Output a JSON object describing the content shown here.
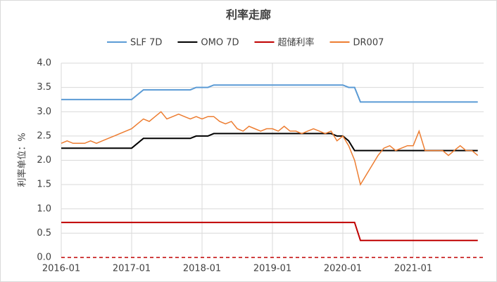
{
  "chart_data": {
    "type": "line",
    "title": "利率走廊",
    "y_label": "利率单位：%",
    "x": [
      "2016-01",
      "2016-02",
      "2016-03",
      "2016-04",
      "2016-05",
      "2016-06",
      "2016-07",
      "2016-08",
      "2016-09",
      "2016-10",
      "2016-11",
      "2016-12",
      "2017-01",
      "2017-02",
      "2017-03",
      "2017-04",
      "2017-05",
      "2017-06",
      "2017-07",
      "2017-08",
      "2017-09",
      "2017-10",
      "2017-11",
      "2017-12",
      "2018-01",
      "2018-02",
      "2018-03",
      "2018-04",
      "2018-05",
      "2018-06",
      "2018-07",
      "2018-08",
      "2018-09",
      "2018-10",
      "2018-11",
      "2018-12",
      "2019-01",
      "2019-02",
      "2019-03",
      "2019-04",
      "2019-05",
      "2019-06",
      "2019-07",
      "2019-08",
      "2019-09",
      "2019-10",
      "2019-11",
      "2019-12",
      "2020-01",
      "2020-02",
      "2020-03",
      "2020-04",
      "2020-05",
      "2020-06",
      "2020-07",
      "2020-08",
      "2020-09",
      "2020-10",
      "2020-11",
      "2020-12",
      "2021-01",
      "2021-02",
      "2021-03",
      "2021-04",
      "2021-05",
      "2021-06",
      "2021-07",
      "2021-08",
      "2021-09",
      "2021-10",
      "2021-11",
      "2021-12"
    ],
    "xlim": [
      "2016-01",
      "2022-01"
    ],
    "xticks": [
      "2016-01",
      "2017-01",
      "2018-01",
      "2019-01",
      "2020-01",
      "2021-01"
    ],
    "ylim": [
      0,
      4
    ],
    "yticks": [
      {
        "value": 0,
        "label": "0.0"
      },
      {
        "value": 0.5,
        "label": "0.5"
      },
      {
        "value": 1,
        "label": "1.0"
      },
      {
        "value": 1.5,
        "label": "1.5"
      },
      {
        "value": 2,
        "label": "2.0"
      },
      {
        "value": 2.5,
        "label": "2.5"
      },
      {
        "value": 3,
        "label": "3.0"
      },
      {
        "value": 3.5,
        "label": "3.5"
      },
      {
        "value": 4,
        "label": "4.0"
      }
    ],
    "grid": true,
    "series": [
      {
        "name": "SLF 7D",
        "color": "#5b9bd5",
        "values": [
          3.25,
          3.25,
          3.25,
          3.25,
          3.25,
          3.25,
          3.25,
          3.25,
          3.25,
          3.25,
          3.25,
          3.25,
          3.25,
          3.35,
          3.45,
          3.45,
          3.45,
          3.45,
          3.45,
          3.45,
          3.45,
          3.45,
          3.45,
          3.5,
          3.5,
          3.5,
          3.55,
          3.55,
          3.55,
          3.55,
          3.55,
          3.55,
          3.55,
          3.55,
          3.55,
          3.55,
          3.55,
          3.55,
          3.55,
          3.55,
          3.55,
          3.55,
          3.55,
          3.55,
          3.55,
          3.55,
          3.55,
          3.55,
          3.55,
          3.5,
          3.5,
          3.2,
          3.2,
          3.2,
          3.2,
          3.2,
          3.2,
          3.2,
          3.2,
          3.2,
          3.2,
          3.2,
          3.2,
          3.2,
          3.2,
          3.2,
          3.2,
          3.2,
          3.2,
          3.2,
          3.2,
          3.2
        ]
      },
      {
        "name": "OMO 7D",
        "color": "#000000",
        "values": [
          2.25,
          2.25,
          2.25,
          2.25,
          2.25,
          2.25,
          2.25,
          2.25,
          2.25,
          2.25,
          2.25,
          2.25,
          2.25,
          2.35,
          2.45,
          2.45,
          2.45,
          2.45,
          2.45,
          2.45,
          2.45,
          2.45,
          2.45,
          2.5,
          2.5,
          2.5,
          2.55,
          2.55,
          2.55,
          2.55,
          2.55,
          2.55,
          2.55,
          2.55,
          2.55,
          2.55,
          2.55,
          2.55,
          2.55,
          2.55,
          2.55,
          2.55,
          2.55,
          2.55,
          2.55,
          2.55,
          2.55,
          2.5,
          2.5,
          2.4,
          2.2,
          2.2,
          2.2,
          2.2,
          2.2,
          2.2,
          2.2,
          2.2,
          2.2,
          2.2,
          2.2,
          2.2,
          2.2,
          2.2,
          2.2,
          2.2,
          2.2,
          2.2,
          2.2,
          2.2,
          2.2,
          2.2
        ]
      },
      {
        "name": "超储利率",
        "color": "#c00000",
        "values": [
          0.72,
          0.72,
          0.72,
          0.72,
          0.72,
          0.72,
          0.72,
          0.72,
          0.72,
          0.72,
          0.72,
          0.72,
          0.72,
          0.72,
          0.72,
          0.72,
          0.72,
          0.72,
          0.72,
          0.72,
          0.72,
          0.72,
          0.72,
          0.72,
          0.72,
          0.72,
          0.72,
          0.72,
          0.72,
          0.72,
          0.72,
          0.72,
          0.72,
          0.72,
          0.72,
          0.72,
          0.72,
          0.72,
          0.72,
          0.72,
          0.72,
          0.72,
          0.72,
          0.72,
          0.72,
          0.72,
          0.72,
          0.72,
          0.72,
          0.72,
          0.72,
          0.35,
          0.35,
          0.35,
          0.35,
          0.35,
          0.35,
          0.35,
          0.35,
          0.35,
          0.35,
          0.35,
          0.35,
          0.35,
          0.35,
          0.35,
          0.35,
          0.35,
          0.35,
          0.35,
          0.35,
          0.35
        ]
      },
      {
        "name": "DR007",
        "color": "#ed7d31",
        "values": [
          2.35,
          2.4,
          2.35,
          2.35,
          2.35,
          2.4,
          2.35,
          2.4,
          2.45,
          2.5,
          2.55,
          2.6,
          2.65,
          2.75,
          2.85,
          2.8,
          2.9,
          3.0,
          2.85,
          2.9,
          2.95,
          2.9,
          2.85,
          2.9,
          2.85,
          2.9,
          2.9,
          2.8,
          2.75,
          2.8,
          2.65,
          2.6,
          2.7,
          2.65,
          2.6,
          2.65,
          2.65,
          2.6,
          2.7,
          2.6,
          2.6,
          2.55,
          2.6,
          2.65,
          2.6,
          2.55,
          2.6,
          2.4,
          2.5,
          2.3,
          2.0,
          1.5,
          1.7,
          1.9,
          2.1,
          2.25,
          2.3,
          2.2,
          2.25,
          2.3,
          2.3,
          2.6,
          2.2,
          2.2,
          2.2,
          2.2,
          2.1,
          2.2,
          2.3,
          2.2,
          2.2,
          2.1
        ]
      }
    ]
  }
}
